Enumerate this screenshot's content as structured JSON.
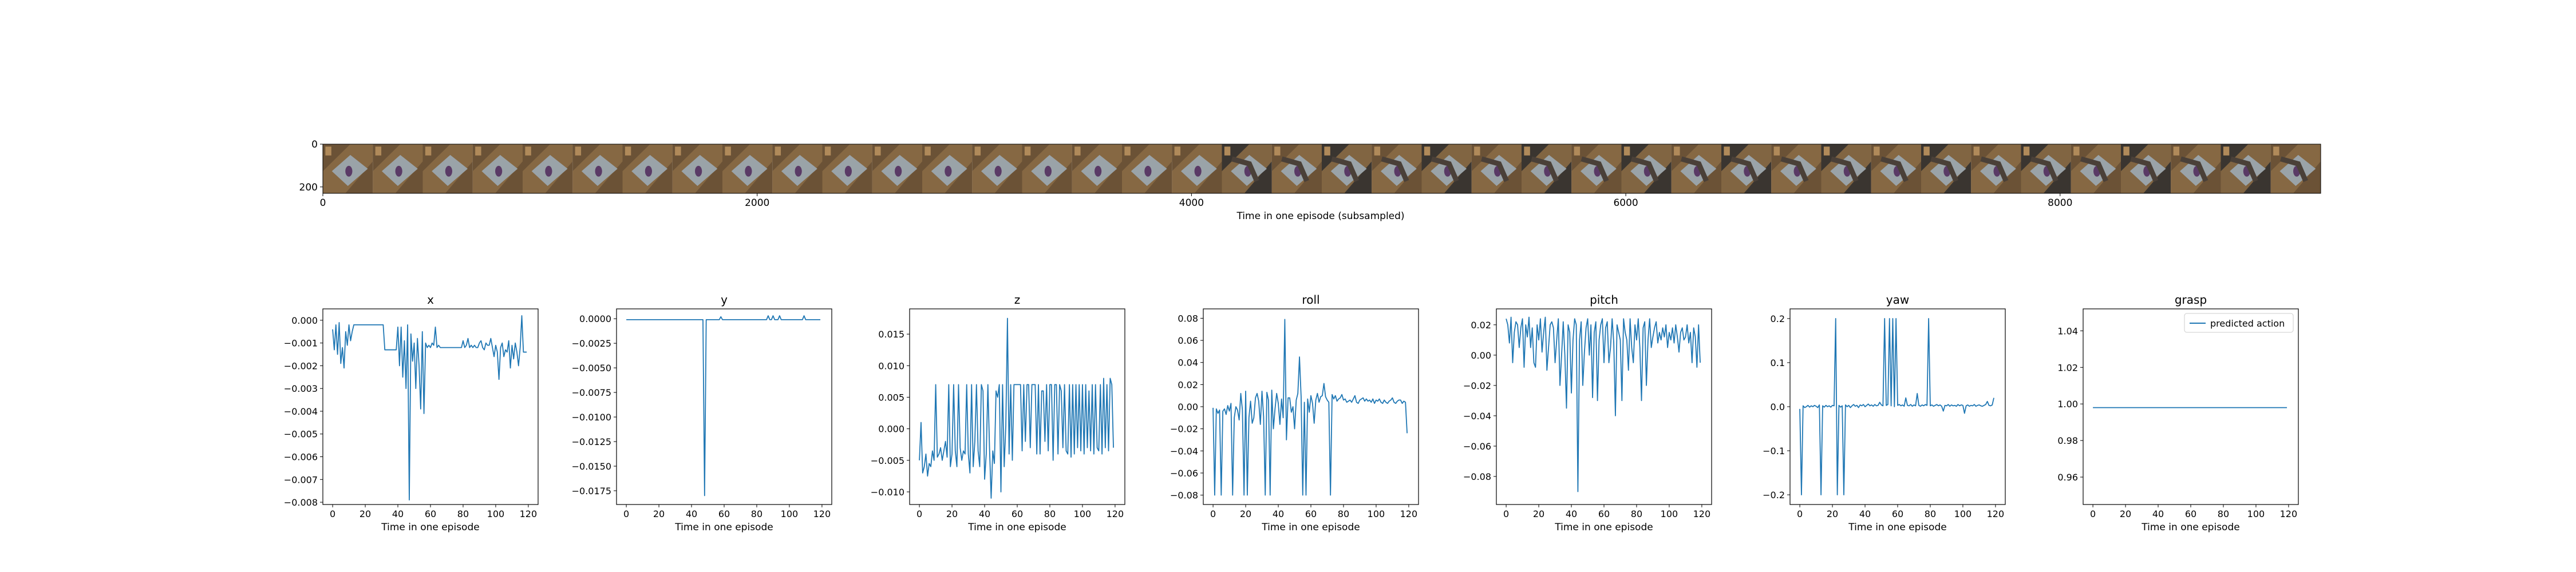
{
  "colors": {
    "line": "#1f77b4",
    "axes": "#000000",
    "background": "#ffffff",
    "frames": [
      "#6b5236",
      "#8a6a45",
      "#9aa3a8",
      "#4a4038",
      "#7a8a92",
      "#5a3a66",
      "#b08a5a",
      "#3a3530"
    ]
  },
  "filmstrip": {
    "xlabel": "Time in one episode (subsampled)",
    "x_ticks": [
      "0",
      "2000",
      "4000",
      "6000",
      "8000"
    ],
    "x_tick_values": [
      0,
      2000,
      4000,
      6000,
      8000
    ],
    "y_ticks": [
      "0",
      "200"
    ],
    "y_tick_values": [
      0,
      200
    ],
    "xlim": [
      0,
      9200
    ],
    "ylim": [
      0,
      230
    ],
    "frame_count": 40,
    "dark_frames_start": 18
  },
  "chart_data": [
    {
      "type": "line",
      "title": "x",
      "xlabel": "Time in one episode",
      "xlim": [
        -6,
        126
      ],
      "ylim": [
        -0.0081,
        0.0005
      ],
      "x_ticks": [
        "0",
        "20",
        "40",
        "60",
        "80",
        "100",
        "120"
      ],
      "x_tick_values": [
        0,
        20,
        40,
        60,
        80,
        100,
        120
      ],
      "y_ticks": [
        "0.000",
        "−0.001",
        "−0.002",
        "−0.003",
        "−0.004",
        "−0.005",
        "−0.006",
        "−0.007",
        "−0.008"
      ],
      "y_tick_values": [
        0,
        -0.001,
        -0.002,
        -0.003,
        -0.004,
        -0.005,
        -0.006,
        -0.007,
        -0.008
      ],
      "x_start": 0,
      "values": [
        -0.0004,
        -0.0013,
        -0.0002,
        -0.0015,
        -0.0001,
        -0.0019,
        -0.0012,
        -0.0021,
        -0.0005,
        -0.0011,
        -0.0002,
        -0.0009,
        -0.0005,
        -0.0002,
        -0.0002,
        -0.0002,
        -0.0002,
        -0.0002,
        -0.0002,
        -0.0002,
        -0.0002,
        -0.0002,
        -0.0002,
        -0.0002,
        -0.0002,
        -0.0002,
        -0.0002,
        -0.0002,
        -0.0002,
        -0.0002,
        -0.0002,
        -0.0002,
        -0.0013,
        -0.0013,
        -0.0013,
        -0.0013,
        -0.0013,
        -0.0013,
        -0.0013,
        -0.0013,
        -0.0003,
        -0.002,
        -0.0003,
        -0.0025,
        -0.0009,
        -0.003,
        -0.0002,
        -0.0079,
        -0.0006,
        -0.0018,
        -0.001,
        -0.003,
        -0.0008,
        -0.002,
        -0.0039,
        -0.0005,
        -0.0041,
        -0.001,
        -0.0012,
        -0.0011,
        -0.0012,
        -0.001,
        -0.0011,
        -0.0003,
        -0.0012,
        -0.0011,
        -0.0012,
        -0.0012,
        -0.0012,
        -0.0012,
        -0.0012,
        -0.0012,
        -0.0012,
        -0.0012,
        -0.0012,
        -0.0012,
        -0.0012,
        -0.0012,
        -0.0012,
        -0.0012,
        -0.0009,
        -0.0012,
        -0.0011,
        -0.0008,
        -0.0012,
        -0.0011,
        -0.0012,
        -0.0011,
        -0.0012,
        -0.0012,
        -0.001,
        -0.0009,
        -0.0012,
        -0.0013,
        -0.001,
        -0.0011,
        -0.0011,
        -0.0008,
        -0.0012,
        -0.0016,
        -0.0011,
        -0.0014,
        -0.0026,
        -0.0012,
        -0.001,
        -0.0016,
        -0.0013,
        -0.0014,
        -0.0009,
        -0.0021,
        -0.0011,
        -0.0017,
        -0.001,
        -0.0014,
        -0.002,
        -0.0012,
        0.0002,
        -0.0014,
        -0.0014,
        -0.0014
      ]
    },
    {
      "type": "line",
      "title": "y",
      "xlabel": "Time in one episode",
      "xlim": [
        -6,
        126
      ],
      "ylim": [
        -0.0189,
        0.001
      ],
      "x_ticks": [
        "0",
        "20",
        "40",
        "60",
        "80",
        "100",
        "120"
      ],
      "x_tick_values": [
        0,
        20,
        40,
        60,
        80,
        100,
        120
      ],
      "y_ticks": [
        "0.0000",
        "−0.0025",
        "−0.0050",
        "−0.0075",
        "−0.0100",
        "−0.0125",
        "−0.0150",
        "−0.0175"
      ],
      "y_tick_values": [
        0,
        -0.0025,
        -0.005,
        -0.0075,
        -0.01,
        -0.0125,
        -0.015,
        -0.0175
      ],
      "x_start": 0,
      "values": [
        -0.0001,
        -0.0001,
        -0.0001,
        -0.0001,
        -0.0001,
        -0.0001,
        -0.0001,
        -0.0001,
        -0.0001,
        -0.0001,
        -0.0001,
        -0.0001,
        -0.0001,
        -0.0001,
        -0.0001,
        -0.0001,
        -0.0001,
        -0.0001,
        -0.0001,
        -0.0001,
        -0.0001,
        -0.0001,
        -0.0001,
        -0.0001,
        -0.0001,
        -0.0001,
        -0.0001,
        -0.0001,
        -0.0001,
        -0.0001,
        -0.0001,
        -0.0001,
        -0.0001,
        -0.0001,
        -0.0001,
        -0.0001,
        -0.0001,
        -0.0001,
        -0.0001,
        -0.0001,
        -0.0001,
        -0.0001,
        -0.0001,
        -0.0001,
        -0.0001,
        -0.0001,
        -0.0001,
        -0.0001,
        -0.018,
        -0.0001,
        -0.0001,
        -0.0001,
        -0.0001,
        -0.0001,
        -0.0001,
        -0.0001,
        -0.0001,
        -0.0001,
        0.0002,
        -0.0001,
        -0.0001,
        -0.0001,
        -0.0001,
        -0.0001,
        -0.0001,
        -0.0001,
        -0.0001,
        -0.0001,
        -0.0001,
        -0.0001,
        -0.0001,
        -0.0001,
        -0.0001,
        -0.0001,
        -0.0001,
        -0.0001,
        -0.0001,
        -0.0001,
        -0.0001,
        -0.0001,
        -0.0001,
        -0.0001,
        -0.0001,
        -0.0001,
        -0.0001,
        -0.0001,
        -0.0001,
        0.0003,
        -0.0001,
        -0.0001,
        0.0003,
        -0.0001,
        -0.0001,
        -0.0001,
        0.0003,
        -0.0001,
        -0.0001,
        -0.0001,
        -0.0001,
        -0.0001,
        -0.0001,
        -0.0001,
        -0.0001,
        -0.0001,
        -0.0001,
        -0.0001,
        -0.0001,
        -0.0001,
        -0.0001,
        0.0003,
        -0.0001,
        -0.0001,
        -0.0001,
        -0.0001,
        -0.0001,
        -0.0001,
        -0.0001,
        -0.0001,
        -0.0001,
        -0.0001
      ]
    },
    {
      "type": "line",
      "title": "z",
      "xlabel": "Time in one episode",
      "xlim": [
        -6,
        126
      ],
      "ylim": [
        -0.012,
        0.019
      ],
      "x_ticks": [
        "0",
        "20",
        "40",
        "60",
        "80",
        "100",
        "120"
      ],
      "x_tick_values": [
        0,
        20,
        40,
        60,
        80,
        100,
        120
      ],
      "y_ticks": [
        "0.015",
        "0.010",
        "0.005",
        "0.000",
        "−0.005",
        "−0.010"
      ],
      "y_tick_values": [
        0.015,
        0.01,
        0.005,
        0,
        -0.005,
        -0.01
      ],
      "x_start": 0,
      "values": [
        -0.005,
        0.001,
        -0.007,
        -0.006,
        -0.004,
        -0.0075,
        -0.0055,
        -0.006,
        -0.0035,
        -0.005,
        0.007,
        -0.0045,
        -0.004,
        -0.003,
        -0.005,
        -0.0035,
        -0.002,
        -0.0045,
        0.007,
        -0.006,
        -0.004,
        0.007,
        -0.0035,
        -0.006,
        0.007,
        -0.003,
        -0.005,
        -0.0035,
        -0.004,
        0.007,
        -0.004,
        -0.007,
        0.007,
        -0.006,
        -0.002,
        0.007,
        -0.0035,
        -0.006,
        0.007,
        0.006,
        -0.008,
        -0.004,
        0.007,
        -0.003,
        -0.011,
        -0.0035,
        -0.0055,
        0.006,
        0.005,
        0.007,
        -0.01,
        0.007,
        -0.006,
        0.0005,
        0.0175,
        -0.004,
        0.007,
        -0.005,
        0.007,
        0.007,
        0.007,
        0.007,
        0.007,
        -0.0035,
        0.007,
        -0.002,
        0.007,
        0.007,
        -0.003,
        0.007,
        0.007,
        0.007,
        -0.004,
        0.007,
        -0.004,
        0.006,
        0.006,
        -0.002,
        0.007,
        -0.0035,
        0.007,
        0.007,
        -0.005,
        0.007,
        0.007,
        -0.004,
        0.007,
        0.006,
        -0.003,
        0.007,
        -0.0035,
        -0.004,
        0.007,
        -0.0045,
        0.007,
        -0.004,
        0.007,
        -0.003,
        0.007,
        -0.0035,
        0.007,
        -0.004,
        0.007,
        -0.003,
        0.006,
        -0.0035,
        0.007,
        -0.004,
        0.007,
        -0.003,
        -0.0035,
        0.007,
        -0.004,
        0.008,
        -0.003,
        0.007,
        -0.0035,
        0.008,
        0.007,
        -0.003
      ]
    },
    {
      "type": "line",
      "title": "roll",
      "xlabel": "Time in one episode",
      "xlim": [
        -6,
        126
      ],
      "ylim": [
        -0.0885,
        0.0885
      ],
      "x_ticks": [
        "0",
        "20",
        "40",
        "60",
        "80",
        "100",
        "120"
      ],
      "x_tick_values": [
        0,
        20,
        40,
        60,
        80,
        100,
        120
      ],
      "y_ticks": [
        "0.08",
        "0.06",
        "0.04",
        "0.02",
        "0.00",
        "−0.02",
        "−0.04",
        "−0.06",
        "−0.08"
      ],
      "y_tick_values": [
        0.08,
        0.06,
        0.04,
        0.02,
        0,
        -0.02,
        -0.04,
        -0.06,
        -0.08
      ],
      "x_start": 0,
      "values": [
        -0.001,
        -0.08,
        -0.002,
        -0.006,
        -0.003,
        -0.08,
        -0.004,
        -0.002,
        -0.007,
        0.001,
        -0.004,
        0.003,
        -0.08,
        -0.01,
        0.0,
        -0.003,
        -0.012,
        0.012,
        -0.003,
        -0.08,
        0.014,
        -0.08,
        -0.01,
        0.005,
        -0.015,
        -0.01,
        0.008,
        0.012,
        0.005,
        -0.016,
        0.014,
        -0.009,
        -0.08,
        0.013,
        0.006,
        -0.08,
        0.015,
        -0.02,
        -0.002,
        0.012,
        0.003,
        -0.016,
        0.007,
        -0.01,
        0.079,
        -0.03,
        0.008,
        0.008,
        -0.005,
        0.0,
        -0.02,
        0.006,
        0.012,
        0.045,
        0.009,
        -0.08,
        0.004,
        -0.08,
        0.007,
        -0.005,
        0.01,
        0.003,
        -0.015,
        0.006,
        0.012,
        0.004,
        0.009,
        0.01,
        0.021,
        0.009,
        0.006,
        0.004,
        -0.08,
        0.011,
        0.007,
        0.01,
        0.005,
        0.007,
        0.008,
        0.011,
        0.006,
        0.007,
        0.004,
        0.005,
        0.006,
        0.004,
        0.007,
        0.01,
        0.004,
        0.003,
        0.006,
        0.007,
        0.008,
        0.005,
        0.007,
        0.005,
        0.006,
        0.004,
        0.007,
        0.003,
        0.006,
        0.005,
        0.007,
        0.004,
        0.003,
        0.006,
        0.004,
        0.003,
        0.005,
        0.006,
        0.008,
        0.004,
        0.003,
        0.005,
        0.006,
        0.006,
        0.003,
        0.005,
        0.004,
        -0.024
      ]
    },
    {
      "type": "line",
      "title": "pitch",
      "xlabel": "Time in one episode",
      "xlim": [
        -6,
        126
      ],
      "ylim": [
        -0.0985,
        0.0305
      ],
      "x_ticks": [
        "0",
        "20",
        "40",
        "60",
        "80",
        "100",
        "120"
      ],
      "x_tick_values": [
        0,
        20,
        40,
        60,
        80,
        100,
        120
      ],
      "y_ticks": [
        "0.02",
        "0.00",
        "−0.02",
        "−0.04",
        "−0.06",
        "−0.08"
      ],
      "y_tick_values": [
        0.02,
        0,
        -0.02,
        -0.04,
        -0.06,
        -0.08
      ],
      "x_start": 0,
      "values": [
        0.024,
        0.02,
        0.008,
        0.025,
        -0.005,
        0.015,
        0.022,
        0.02,
        0.005,
        0.018,
        0.024,
        -0.008,
        0.02,
        0.012,
        0.025,
        0.005,
        0.018,
        -0.005,
        -0.008,
        0.02,
        0.01,
        0.024,
        0.002,
        0.015,
        0.025,
        -0.01,
        0.005,
        0.02,
        0.022,
        0.018,
        -0.005,
        0.01,
        0.024,
        -0.02,
        0.0,
        0.022,
        0.0,
        -0.035,
        0.02,
        0.015,
        -0.025,
        0.01,
        0.024,
        0.02,
        -0.09,
        0.01,
        0.022,
        -0.02,
        0.002,
        0.018,
        0.024,
        0.0,
        0.02,
        -0.028,
        0.015,
        0.022,
        -0.03,
        0.01,
        0.02,
        0.024,
        -0.005,
        0.018,
        0.022,
        -0.005,
        0.005,
        0.024,
        0.008,
        -0.04,
        0.02,
        0.015,
        0.01,
        -0.03,
        0.024,
        0.015,
        0.01,
        -0.01,
        0.024,
        0.005,
        -0.005,
        0.02,
        0.01,
        0.024,
        0.005,
        -0.03,
        0.018,
        0.022,
        -0.02,
        0.01,
        0.024,
        0.005,
        0.012,
        0.018,
        0.022,
        0.008,
        0.015,
        0.01,
        0.018,
        0.012,
        0.02,
        0.005,
        0.015,
        0.01,
        0.018,
        0.008,
        0.02,
        0.012,
        0.002,
        0.015,
        0.018,
        0.01,
        0.012,
        0.02,
        0.008,
        0.015,
        -0.005,
        0.018,
        0.012,
        -0.008,
        0.02,
        -0.005
      ]
    },
    {
      "type": "line",
      "title": "yaw",
      "xlabel": "Time in one episode",
      "xlim": [
        -6,
        126
      ],
      "ylim": [
        -0.222,
        0.222
      ],
      "x_ticks": [
        "0",
        "20",
        "40",
        "60",
        "80",
        "100",
        "120"
      ],
      "x_tick_values": [
        0,
        20,
        40,
        60,
        80,
        100,
        120
      ],
      "y_ticks": [
        "0.2",
        "0.1",
        "0.0",
        "−0.1",
        "−0.2"
      ],
      "y_tick_values": [
        0.2,
        0.1,
        0,
        -0.1,
        -0.2
      ],
      "x_start": 0,
      "values": [
        -0.005,
        -0.2,
        0.002,
        -0.002,
        0.0,
        0.003,
        -0.001,
        0.002,
        0.0,
        0.003,
        0.001,
        -0.002,
        0.004,
        -0.2,
        0.002,
        -0.001,
        0.003,
        0.0,
        0.002,
        -0.001,
        0.003,
        0.002,
        0.2,
        -0.2,
        0.003,
        -0.001,
        0.002,
        -0.2,
        0.004,
        0.0,
        0.003,
        -0.002,
        0.002,
        0.005,
        0.001,
        0.003,
        -0.002,
        0.004,
        0.002,
        0.005,
        0.0,
        0.003,
        0.006,
        0.002,
        0.004,
        0.001,
        0.005,
        0.002,
        0.003,
        0.01,
        0.004,
        0.002,
        0.2,
        0.003,
        0.005,
        0.2,
        0.002,
        0.2,
        0.0,
        0.2,
        0.003,
        0.005,
        0.002,
        0.004,
        0.001,
        0.02,
        0.003,
        0.002,
        0.005,
        0.001,
        0.004,
        0.002,
        0.03,
        0.003,
        0.001,
        0.004,
        0.002,
        0.005,
        0.003,
        0.2,
        0.002,
        0.004,
        0.001,
        0.003,
        0.005,
        0.002,
        0.004,
        0.001,
        -0.01,
        0.003,
        0.002,
        0.005,
        0.001,
        0.004,
        0.002,
        0.003,
        0.001,
        0.005,
        0.002,
        0.004,
        0.003,
        -0.015,
        0.002,
        0.004,
        0.001,
        0.003,
        0.002,
        0.005,
        0.001,
        0.003,
        0.004,
        0.002,
        0.001,
        0.003,
        0.005,
        0.012,
        0.003,
        0.002,
        0.004,
        0.02
      ]
    },
    {
      "type": "line",
      "title": "grasp",
      "xlabel": "Time in one episode",
      "xlim": [
        -6,
        126
      ],
      "ylim": [
        0.945,
        1.052
      ],
      "x_ticks": [
        "0",
        "20",
        "40",
        "60",
        "80",
        "100",
        "120"
      ],
      "x_tick_values": [
        0,
        20,
        40,
        60,
        80,
        100,
        120
      ],
      "y_ticks": [
        "1.04",
        "1.02",
        "1.00",
        "0.98",
        "0.96"
      ],
      "y_tick_values": [
        1.04,
        1.02,
        1.0,
        0.98,
        0.96
      ],
      "legend": "predicted action",
      "legend_position": "top-right",
      "x_start": 0,
      "values": [
        0.998,
        0.998,
        0.998,
        0.998,
        0.998,
        0.998,
        0.998,
        0.998,
        0.998,
        0.998,
        0.998,
        0.998,
        0.998,
        0.998,
        0.998,
        0.998,
        0.998,
        0.998,
        0.998,
        0.998,
        0.998,
        0.998,
        0.998,
        0.998,
        0.998,
        0.998,
        0.998,
        0.998,
        0.998,
        0.998,
        0.998,
        0.998,
        0.998,
        0.998,
        0.998,
        0.998,
        0.998,
        0.998,
        0.998,
        0.998,
        0.998,
        0.998,
        0.998,
        0.998,
        0.998,
        0.998,
        0.998,
        0.998,
        0.998,
        0.998,
        0.998,
        0.998,
        0.998,
        0.998,
        0.998,
        0.998,
        0.998,
        0.998,
        0.998,
        0.998,
        0.998,
        0.998,
        0.998,
        0.998,
        0.998,
        0.998,
        0.998,
        0.998,
        0.998,
        0.998,
        0.998,
        0.998,
        0.998,
        0.998,
        0.998,
        0.998,
        0.998,
        0.998,
        0.998,
        0.998,
        0.998,
        0.998,
        0.998,
        0.998,
        0.998,
        0.998,
        0.998,
        0.998,
        0.998,
        0.998,
        0.998,
        0.998,
        0.998,
        0.998,
        0.998,
        0.998,
        0.998,
        0.998,
        0.998,
        0.998,
        0.998,
        0.998,
        0.998,
        0.998,
        0.998,
        0.998,
        0.998,
        0.998,
        0.998,
        0.998,
        0.998,
        0.998,
        0.998,
        0.998,
        0.998,
        0.998,
        0.998,
        0.998,
        0.998,
        0.998
      ]
    }
  ]
}
